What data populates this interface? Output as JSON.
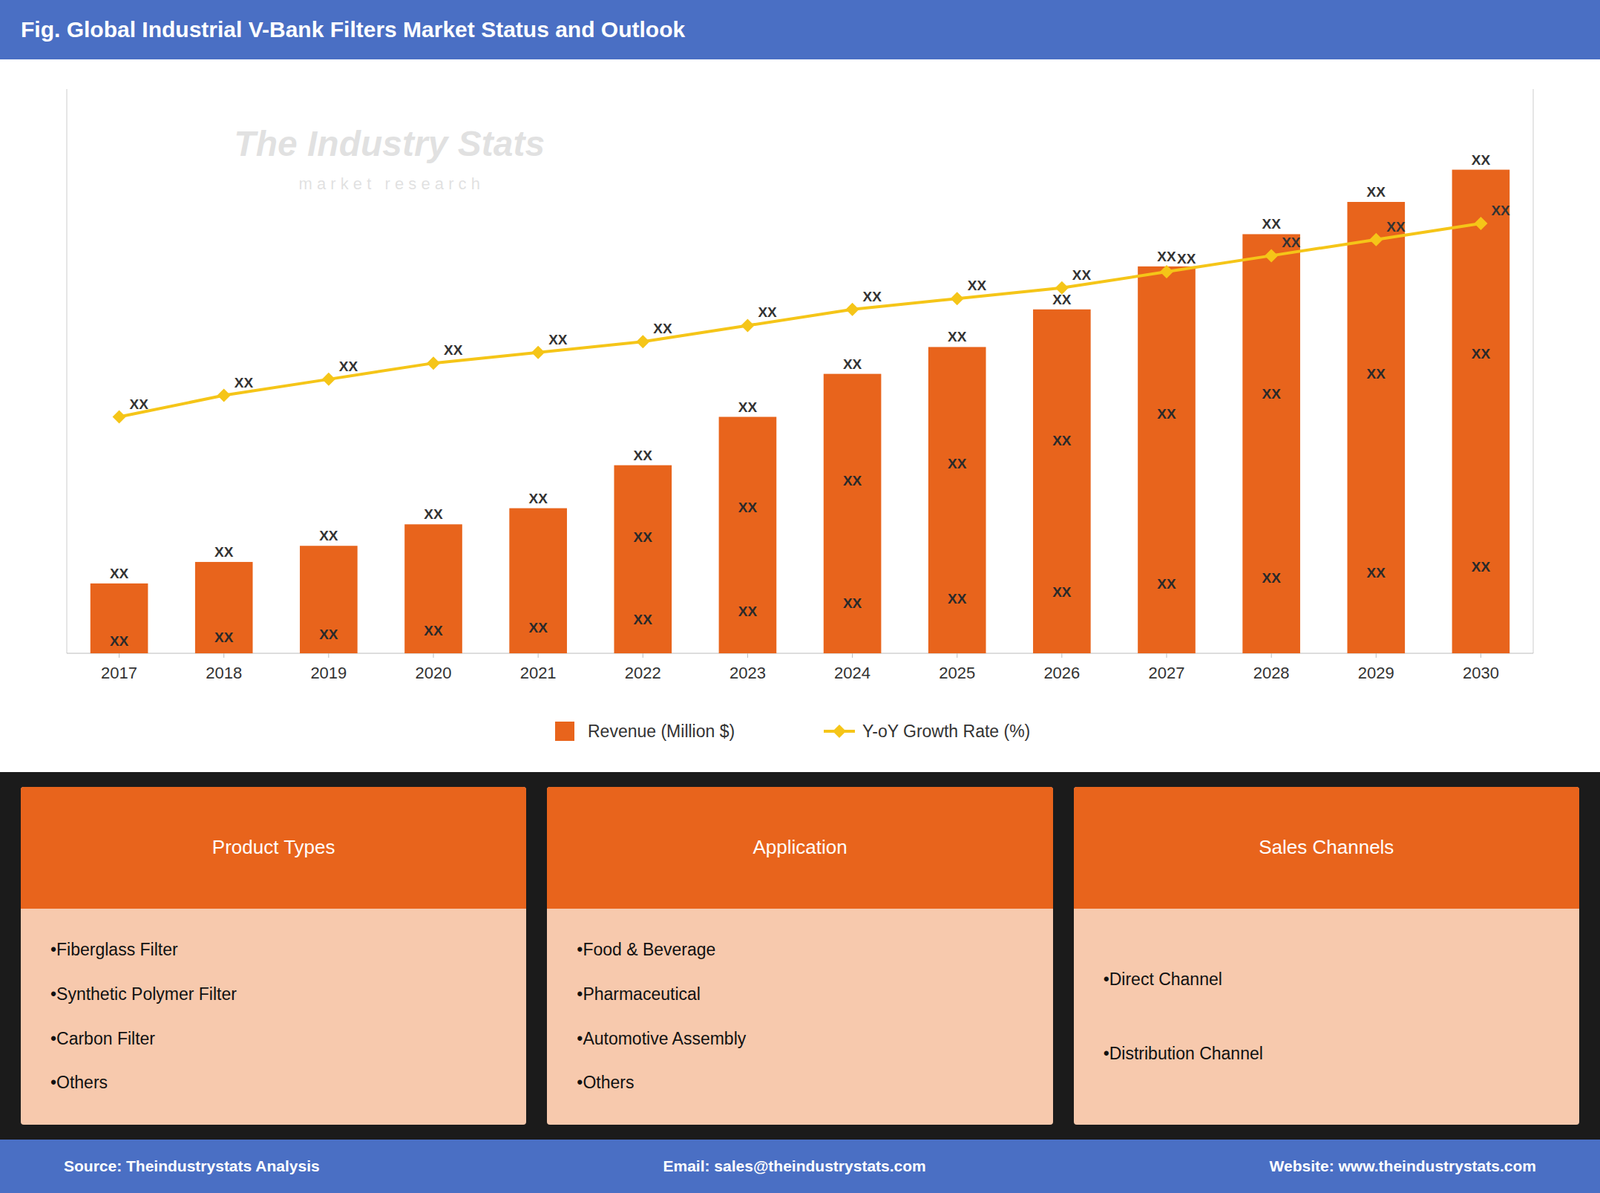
{
  "chart_data": {
    "type": "bar",
    "title": "Fig. Global Industrial V-Bank Filters Market Status and Outlook",
    "categories": [
      "2017",
      "2018",
      "2019",
      "2020",
      "2021",
      "2022",
      "2023",
      "2024",
      "2025",
      "2026",
      "2027",
      "2028",
      "2029",
      "2030"
    ],
    "series": [
      {
        "name": "Revenue (Million $)",
        "type": "bar",
        "color": "#e8641c",
        "values": [
          0.13,
          0.17,
          0.2,
          0.24,
          0.27,
          0.35,
          0.44,
          0.52,
          0.57,
          0.64,
          0.72,
          0.78,
          0.84,
          0.9
        ]
      },
      {
        "name": "Y-oY Growth Rate (%)",
        "type": "line",
        "axis": "y2",
        "color": "#f5c518",
        "marker": "diamond",
        "values": [
          0.44,
          0.48,
          0.51,
          0.54,
          0.56,
          0.58,
          0.61,
          0.64,
          0.66,
          0.68,
          0.71,
          0.74,
          0.77,
          0.8
        ]
      }
    ],
    "ylim": [
      0,
      1.05
    ],
    "yticks": [],
    "y2lim": [
      0,
      1.05
    ],
    "y2ticks": [],
    "grid": false,
    "tick_labels": "x",
    "legend": "bottom",
    "annotations": [
      {
        "text": "XX",
        "series": 0,
        "index": 0
      },
      {
        "text": "XX",
        "series": 0,
        "index": 0
      },
      {
        "text": "XX",
        "series": 0,
        "index": 1
      },
      {
        "text": "XX",
        "series": 0,
        "index": 1
      },
      {
        "text": "XX",
        "series": 0,
        "index": 2
      },
      {
        "text": "XX",
        "series": 0,
        "index": 2
      },
      {
        "text": "XX",
        "series": 0,
        "index": 3
      },
      {
        "text": "XX",
        "series": 0,
        "index": 3
      },
      {
        "text": "XX",
        "series": 0,
        "index": 4
      },
      {
        "text": "XX",
        "series": 0,
        "index": 4
      },
      {
        "text": "XX",
        "series": 0,
        "index": 5
      },
      {
        "text": "XX",
        "series": 0,
        "index": 5
      },
      {
        "text": "XX",
        "series": 0,
        "index": 5
      },
      {
        "text": "XX",
        "series": 0,
        "index": 6
      },
      {
        "text": "XX",
        "series": 0,
        "index": 6
      },
      {
        "text": "XX",
        "series": 0,
        "index": 6
      },
      {
        "text": "XX",
        "series": 0,
        "index": 7
      },
      {
        "text": "XX",
        "series": 0,
        "index": 7
      },
      {
        "text": "XX",
        "series": 0,
        "index": 7
      },
      {
        "text": "XX",
        "series": 0,
        "index": 8
      },
      {
        "text": "XX",
        "series": 0,
        "index": 8
      },
      {
        "text": "XX",
        "series": 0,
        "index": 8
      },
      {
        "text": "XX",
        "series": 0,
        "index": 9
      },
      {
        "text": "XX",
        "series": 0,
        "index": 9
      },
      {
        "text": "XX",
        "series": 0,
        "index": 9
      },
      {
        "text": "XX",
        "series": 0,
        "index": 10
      },
      {
        "text": "XX",
        "series": 0,
        "index": 10
      },
      {
        "text": "XX",
        "series": 0,
        "index": 10
      },
      {
        "text": "XX",
        "series": 0,
        "index": 11
      },
      {
        "text": "XX",
        "series": 0,
        "index": 11
      },
      {
        "text": "XX",
        "series": 0,
        "index": 11
      },
      {
        "text": "XX",
        "series": 0,
        "index": 12
      },
      {
        "text": "XX",
        "series": 0,
        "index": 12
      },
      {
        "text": "XX",
        "series": 0,
        "index": 12
      },
      {
        "text": "XX",
        "series": 0,
        "index": 13
      },
      {
        "text": "XX",
        "series": 0,
        "index": 13
      },
      {
        "text": "XX",
        "series": 0,
        "index": 13
      },
      {
        "text": "XX",
        "series": 1,
        "index": 0
      },
      {
        "text": "XX",
        "series": 1,
        "index": 1
      },
      {
        "text": "XX",
        "series": 1,
        "index": 2
      },
      {
        "text": "XX",
        "series": 1,
        "index": 3
      },
      {
        "text": "XX",
        "series": 1,
        "index": 4
      },
      {
        "text": "XX",
        "series": 1,
        "index": 5
      },
      {
        "text": "XX",
        "series": 1,
        "index": 6
      },
      {
        "text": "XX",
        "series": 1,
        "index": 7
      },
      {
        "text": "XX",
        "series": 1,
        "index": 8
      },
      {
        "text": "XX",
        "series": 1,
        "index": 9
      },
      {
        "text": "XX",
        "series": 1,
        "index": 10
      },
      {
        "text": "XX",
        "series": 1,
        "index": 11
      },
      {
        "text": "XX",
        "series": 1,
        "index": 12
      },
      {
        "text": "XX",
        "series": 1,
        "index": 13
      }
    ]
  },
  "watermark": [
    "The Industry Stats",
    "m a r k e t   r e s e a r c h"
  ],
  "cards": [
    {
      "title": "Product Types",
      "items": [
        "•Fiberglass Filter",
        "•Synthetic Polymer Filter",
        "•Carbon Filter",
        "•Others"
      ]
    },
    {
      "title": "Application",
      "items": [
        "•Food & Beverage",
        "•Pharmaceutical",
        "•Automotive Assembly",
        "•Others"
      ]
    },
    {
      "title": "Sales Channels",
      "items": [
        "•Direct Channel",
        "•Distribution Channel"
      ]
    }
  ],
  "footer": [
    "Source: Theindustrystats Analysis",
    "Email: sales@theindustrystats.com",
    "Website: www.theindustrystats.com"
  ]
}
